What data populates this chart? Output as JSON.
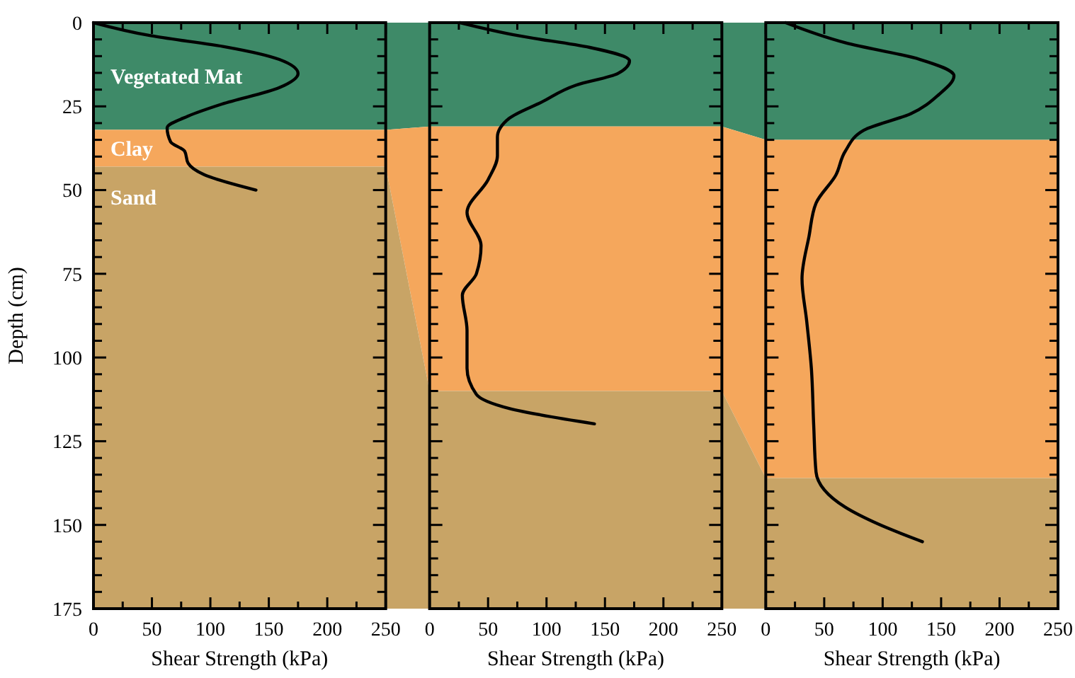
{
  "chart_data": [
    {
      "type": "line",
      "xlabel": "Shear Strength (kPa)",
      "ylabel": "Depth (cm)",
      "xlim": [
        0,
        250
      ],
      "ylim": [
        175,
        0
      ],
      "xticks": [
        0,
        {
          "value": 25,
          "label": null
        },
        50,
        {
          "value": 75,
          "label": null
        },
        100,
        {
          "value": 125,
          "label": null
        },
        150,
        {
          "value": 175,
          "label": null
        },
        200,
        {
          "value": 225,
          "label": null
        },
        250
      ],
      "yticks": [
        0,
        {
          "value": 5,
          "label": null
        },
        {
          "value": 10,
          "label": null
        },
        {
          "value": 15,
          "label": null
        },
        {
          "value": 20,
          "label": null
        },
        25,
        {
          "value": 30,
          "label": null
        },
        {
          "value": 35,
          "label": null
        },
        {
          "value": 40,
          "label": null
        },
        {
          "value": 45,
          "label": null
        },
        50,
        {
          "value": 55,
          "label": null
        },
        {
          "value": 60,
          "label": null
        },
        {
          "value": 65,
          "label": null
        },
        {
          "value": 70,
          "label": null
        },
        75,
        {
          "value": 80,
          "label": null
        },
        {
          "value": 85,
          "label": null
        },
        {
          "value": 90,
          "label": null
        },
        {
          "value": 95,
          "label": null
        },
        100,
        {
          "value": 105,
          "label": null
        },
        {
          "value": 110,
          "label": null
        },
        {
          "value": 115,
          "label": null
        },
        {
          "value": 120,
          "label": null
        },
        125,
        {
          "value": 130,
          "label": null
        },
        {
          "value": 135,
          "label": null
        },
        {
          "value": 140,
          "label": null
        },
        {
          "value": 145,
          "label": null
        },
        150,
        {
          "value": 155,
          "label": null
        },
        {
          "value": 160,
          "label": null
        },
        {
          "value": 165,
          "label": null
        },
        {
          "value": 170,
          "label": null
        },
        175
      ],
      "bands": [
        {
          "axis": "y",
          "from": 0,
          "to": 32,
          "label": "Vegetated Mat",
          "color": "#3e8a68"
        },
        {
          "axis": "y",
          "from": 32,
          "to": 43,
          "label": "Clay",
          "color": "#f5a75c"
        },
        {
          "axis": "y",
          "from": 43,
          "to": 175,
          "label": "Sand",
          "color": "#c8a466"
        }
      ],
      "series": [
        {
          "color": "#000000",
          "x": [
            0,
            49,
            114,
            159,
            175,
            159,
            110,
            81,
            63,
            66,
            78,
            81,
            94,
            139
          ],
          "values": [
            0,
            3.9,
            7.3,
            11,
            15.2,
            19.4,
            24.3,
            27.9,
            31.4,
            35.6,
            38.4,
            42,
            45.3,
            50
          ]
        }
      ]
    },
    {
      "type": "line",
      "xlabel": "Shear Strength (kPa)",
      "xlim": [
        0,
        250
      ],
      "ylim": [
        175,
        0
      ],
      "tick_labels": "x",
      "xticks": [
        0,
        {
          "value": 25,
          "label": null
        },
        50,
        {
          "value": 75,
          "label": null
        },
        100,
        {
          "value": 125,
          "label": null
        },
        150,
        {
          "value": 175,
          "label": null
        },
        200,
        {
          "value": 225,
          "label": null
        },
        250
      ],
      "yticks": [
        0,
        {
          "value": 5,
          "label": null
        },
        {
          "value": 10,
          "label": null
        },
        {
          "value": 15,
          "label": null
        },
        {
          "value": 20,
          "label": null
        },
        25,
        {
          "value": 30,
          "label": null
        },
        {
          "value": 35,
          "label": null
        },
        {
          "value": 40,
          "label": null
        },
        {
          "value": 45,
          "label": null
        },
        50,
        {
          "value": 55,
          "label": null
        },
        {
          "value": 60,
          "label": null
        },
        {
          "value": 65,
          "label": null
        },
        {
          "value": 70,
          "label": null
        },
        75,
        {
          "value": 80,
          "label": null
        },
        {
          "value": 85,
          "label": null
        },
        {
          "value": 90,
          "label": null
        },
        {
          "value": 95,
          "label": null
        },
        100,
        {
          "value": 105,
          "label": null
        },
        {
          "value": 110,
          "label": null
        },
        {
          "value": 115,
          "label": null
        },
        {
          "value": 120,
          "label": null
        },
        125,
        {
          "value": 130,
          "label": null
        },
        {
          "value": 135,
          "label": null
        },
        {
          "value": 140,
          "label": null
        },
        {
          "value": 145,
          "label": null
        },
        150,
        {
          "value": 155,
          "label": null
        },
        {
          "value": 160,
          "label": null
        },
        {
          "value": 165,
          "label": null
        },
        {
          "value": 170,
          "label": null
        },
        175
      ],
      "bands": [
        {
          "axis": "y",
          "from": 0,
          "to": 31,
          "color": "#3e8a68"
        },
        {
          "axis": "y",
          "from": 31,
          "to": 110,
          "color": "#f5a75c"
        },
        {
          "axis": "y",
          "from": 110,
          "to": 175,
          "color": "#c8a466"
        }
      ],
      "series": [
        {
          "color": "#000000",
          "x": [
            26,
            76,
            137,
            171,
            161,
            125,
            96,
            68,
            58,
            58,
            50,
            32,
            44,
            40,
            28,
            32,
            32,
            40,
            68,
            141
          ],
          "values": [
            0,
            3.9,
            7.4,
            11.4,
            15.2,
            18.7,
            23.7,
            28.6,
            34.2,
            39.8,
            46.9,
            56.7,
            66.6,
            75,
            81.4,
            91.9,
            103.2,
            111,
            115.2,
            119.8
          ]
        }
      ]
    },
    {
      "type": "line",
      "xlabel": "Shear Strength (kPa)",
      "xlim": [
        0,
        250
      ],
      "ylim": [
        175,
        0
      ],
      "tick_labels": "x",
      "xticks": [
        0,
        {
          "value": 25,
          "label": null
        },
        50,
        {
          "value": 75,
          "label": null
        },
        100,
        {
          "value": 125,
          "label": null
        },
        150,
        {
          "value": 175,
          "label": null
        },
        200,
        {
          "value": 225,
          "label": null
        },
        250
      ],
      "yticks": [
        0,
        {
          "value": 5,
          "label": null
        },
        {
          "value": 10,
          "label": null
        },
        {
          "value": 15,
          "label": null
        },
        {
          "value": 20,
          "label": null
        },
        25,
        {
          "value": 30,
          "label": null
        },
        {
          "value": 35,
          "label": null
        },
        {
          "value": 40,
          "label": null
        },
        {
          "value": 45,
          "label": null
        },
        50,
        {
          "value": 55,
          "label": null
        },
        {
          "value": 60,
          "label": null
        },
        {
          "value": 65,
          "label": null
        },
        {
          "value": 70,
          "label": null
        },
        75,
        {
          "value": 80,
          "label": null
        },
        {
          "value": 85,
          "label": null
        },
        {
          "value": 90,
          "label": null
        },
        {
          "value": 95,
          "label": null
        },
        100,
        {
          "value": 105,
          "label": null
        },
        {
          "value": 110,
          "label": null
        },
        {
          "value": 115,
          "label": null
        },
        {
          "value": 120,
          "label": null
        },
        125,
        {
          "value": 130,
          "label": null
        },
        {
          "value": 135,
          "label": null
        },
        {
          "value": 140,
          "label": null
        },
        {
          "value": 145,
          "label": null
        },
        150,
        {
          "value": 155,
          "label": null
        },
        {
          "value": 160,
          "label": null
        },
        {
          "value": 165,
          "label": null
        },
        {
          "value": 170,
          "label": null
        },
        175
      ],
      "bands": [
        {
          "axis": "y",
          "from": 0,
          "to": 35,
          "color": "#3e8a68"
        },
        {
          "axis": "y",
          "from": 35,
          "to": 136,
          "color": "#f5a75c"
        },
        {
          "axis": "y",
          "from": 136,
          "to": 175,
          "color": "#c8a466"
        }
      ],
      "series": [
        {
          "color": "#000000",
          "x": [
            17,
            68,
            132,
            161,
            148,
            124,
            84,
            68,
            60,
            43,
            37,
            31,
            35,
            39,
            41,
            43,
            68,
            96,
            134
          ],
          "values": [
            0,
            6,
            11,
            15.9,
            21.5,
            27.2,
            32.1,
            38.4,
            45.5,
            53.9,
            63.8,
            76.5,
            89.1,
            103.2,
            120.1,
            134.2,
            144.7,
            149.7,
            155
          ]
        }
      ]
    }
  ]
}
